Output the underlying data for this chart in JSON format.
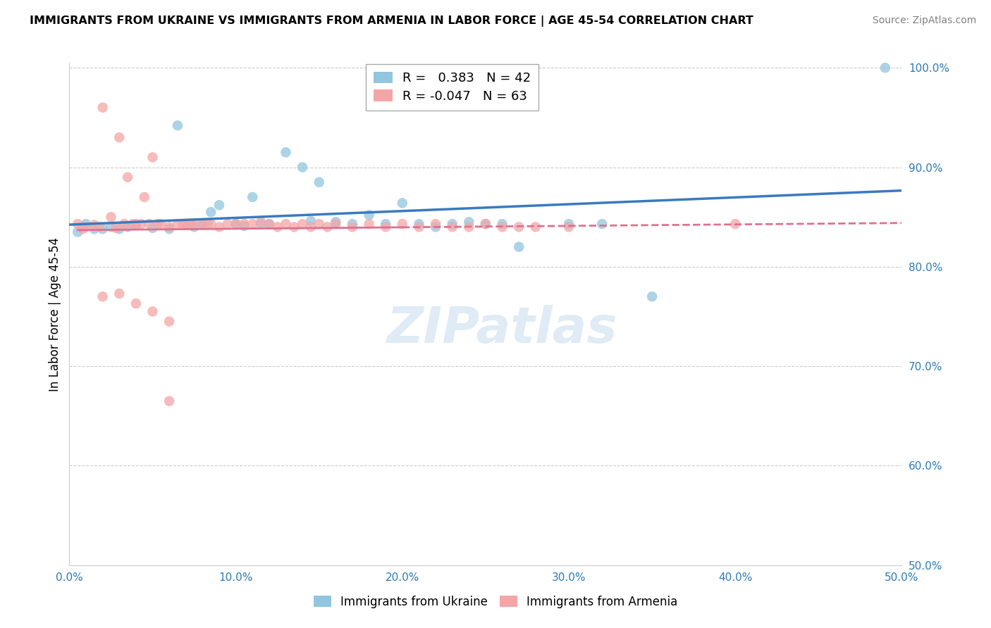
{
  "title": "IMMIGRANTS FROM UKRAINE VS IMMIGRANTS FROM ARMENIA IN LABOR FORCE | AGE 45-54 CORRELATION CHART",
  "source": "Source: ZipAtlas.com",
  "ylabel": "In Labor Force | Age 45-54",
  "xlim": [
    0.0,
    0.5
  ],
  "ylim": [
    0.5,
    1.005
  ],
  "ytick_labels": [
    "50.0%",
    "60.0%",
    "70.0%",
    "80.0%",
    "90.0%",
    "100.0%"
  ],
  "ytick_values": [
    0.5,
    0.6,
    0.7,
    0.8,
    0.9,
    1.0
  ],
  "xtick_labels": [
    "0.0%",
    "10.0%",
    "20.0%",
    "30.0%",
    "40.0%",
    "50.0%"
  ],
  "xtick_values": [
    0.0,
    0.1,
    0.2,
    0.3,
    0.4,
    0.5
  ],
  "ukraine_color": "#92c5de",
  "armenia_color": "#f4a6a6",
  "ukraine_line_color": "#3a7abf",
  "armenia_line_solid_color": "#e07090",
  "armenia_line_dash_color": "#e07090",
  "ukraine_R": 0.383,
  "ukraine_N": 42,
  "armenia_R": -0.047,
  "armenia_N": 63,
  "legend_ukraine": "Immigrants from Ukraine",
  "legend_armenia": "Immigrants from Armenia",
  "ukraine_scatter_x": [
    0.005,
    0.008,
    0.01,
    0.015,
    0.02,
    0.025,
    0.03,
    0.035,
    0.04,
    0.05,
    0.06,
    0.065,
    0.07,
    0.075,
    0.08,
    0.085,
    0.09,
    0.1,
    0.105,
    0.11,
    0.115,
    0.12,
    0.13,
    0.14,
    0.145,
    0.15,
    0.16,
    0.17,
    0.18,
    0.19,
    0.2,
    0.21,
    0.22,
    0.23,
    0.24,
    0.25,
    0.26,
    0.27,
    0.3,
    0.32,
    0.35,
    0.49
  ],
  "ukraine_scatter_y": [
    0.835,
    0.84,
    0.843,
    0.838,
    0.838,
    0.84,
    0.838,
    0.84,
    0.842,
    0.839,
    0.838,
    0.942,
    0.843,
    0.84,
    0.843,
    0.855,
    0.862,
    0.843,
    0.841,
    0.87,
    0.843,
    0.843,
    0.915,
    0.9,
    0.846,
    0.885,
    0.845,
    0.843,
    0.852,
    0.843,
    0.864,
    0.843,
    0.84,
    0.843,
    0.845,
    0.843,
    0.843,
    0.82,
    0.843,
    0.843,
    0.77,
    1.0
  ],
  "armenia_scatter_x": [
    0.005,
    0.008,
    0.01,
    0.015,
    0.018,
    0.02,
    0.025,
    0.028,
    0.03,
    0.033,
    0.035,
    0.038,
    0.04,
    0.043,
    0.045,
    0.048,
    0.05,
    0.053,
    0.055,
    0.06,
    0.065,
    0.068,
    0.07,
    0.073,
    0.075,
    0.08,
    0.083,
    0.085,
    0.09,
    0.095,
    0.1,
    0.105,
    0.11,
    0.115,
    0.12,
    0.125,
    0.13,
    0.135,
    0.14,
    0.145,
    0.15,
    0.155,
    0.16,
    0.17,
    0.18,
    0.19,
    0.2,
    0.21,
    0.22,
    0.23,
    0.24,
    0.25,
    0.26,
    0.27,
    0.28,
    0.3,
    0.4,
    0.02,
    0.03,
    0.04,
    0.05,
    0.06,
    0.06
  ],
  "armenia_scatter_y": [
    0.843,
    0.838,
    0.84,
    0.842,
    0.84,
    0.96,
    0.85,
    0.839,
    0.93,
    0.843,
    0.89,
    0.843,
    0.843,
    0.843,
    0.87,
    0.843,
    0.91,
    0.843,
    0.843,
    0.84,
    0.843,
    0.843,
    0.843,
    0.843,
    0.843,
    0.843,
    0.843,
    0.843,
    0.84,
    0.843,
    0.843,
    0.843,
    0.843,
    0.845,
    0.843,
    0.84,
    0.843,
    0.84,
    0.843,
    0.84,
    0.843,
    0.84,
    0.843,
    0.84,
    0.843,
    0.84,
    0.843,
    0.84,
    0.843,
    0.84,
    0.84,
    0.843,
    0.84,
    0.84,
    0.84,
    0.84,
    0.843,
    0.77,
    0.773,
    0.763,
    0.755,
    0.745,
    0.665
  ]
}
